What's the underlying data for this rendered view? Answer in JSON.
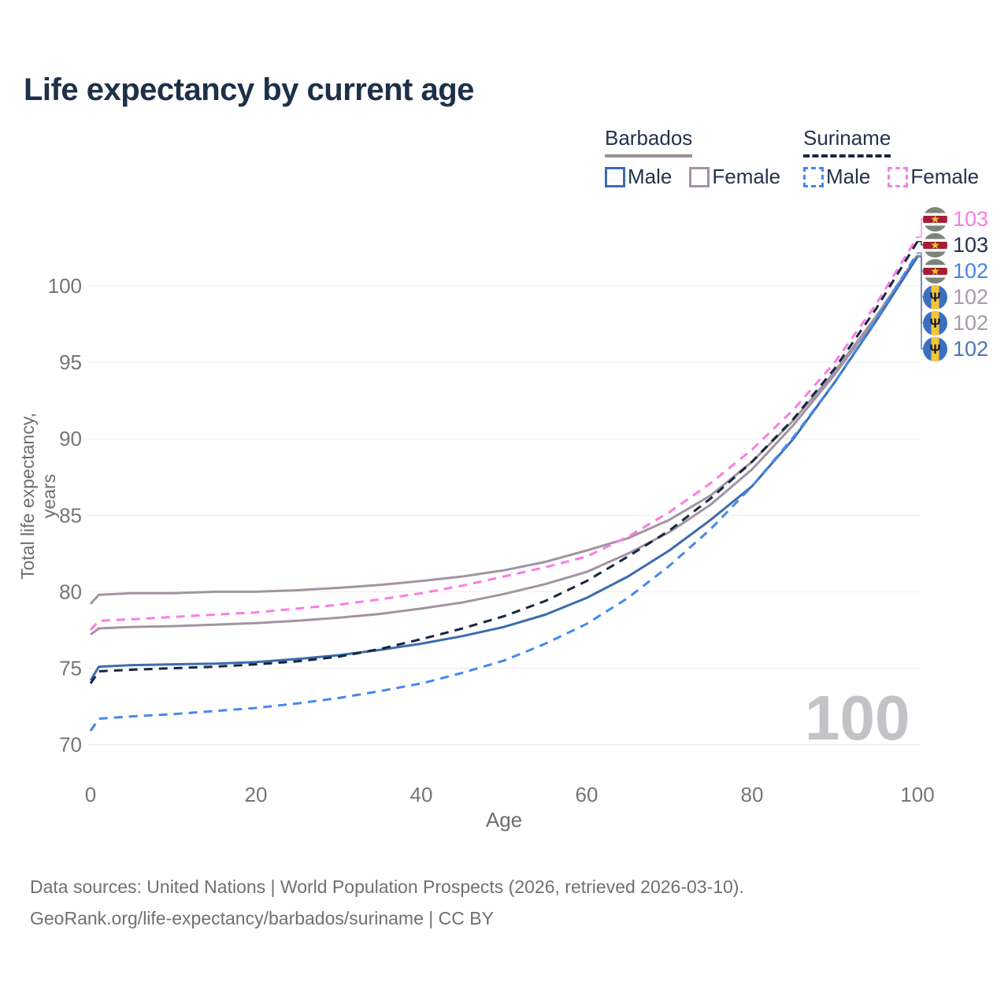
{
  "title": "Life expectancy by current age",
  "legend": {
    "barbados": {
      "label": "Barbados",
      "line_style": "solid",
      "line_color": "#9b8f9b",
      "male_label": "Male",
      "male_color": "#3c6cae",
      "female_label": "Female",
      "female_color": "#a294a2"
    },
    "suriname": {
      "label": "Suriname",
      "line_style": "dashed",
      "line_color": "#172740",
      "male_label": "Male",
      "male_color": "#4289f0",
      "female_label": "Female",
      "female_color": "#fa7de2"
    }
  },
  "axes": {
    "y_title": "Total life expectancy, years",
    "x_title": "Age",
    "y_ticks": [
      70,
      75,
      80,
      85,
      90,
      95,
      100
    ],
    "x_ticks": [
      0,
      20,
      40,
      60,
      80,
      100
    ],
    "tick_color": "#757575",
    "grid_color": "#ececec"
  },
  "watermark": "100",
  "footer": {
    "line1": "Data sources: United Nations | World Population Prospects (2026, retrieved 2026-03-10).",
    "line2": "GeoRank.org/life-expectancy/barbados/suriname | CC BY"
  },
  "end_labels": [
    {
      "flag": "suriname",
      "value": "103",
      "color": "#fa7de2",
      "series_index": 3
    },
    {
      "flag": "suriname",
      "value": "103",
      "color": "#22334d",
      "series_index": 4
    },
    {
      "flag": "suriname",
      "value": "102",
      "color": "#4285e8",
      "series_index": 5
    },
    {
      "flag": "barbados",
      "value": "102",
      "color": "#a89aa8",
      "series_index": 0
    },
    {
      "flag": "barbados",
      "value": "102",
      "color": "#a89aa8",
      "series_index": 1
    },
    {
      "flag": "barbados",
      "value": "102",
      "color": "#4a77b0",
      "series_index": 2
    }
  ],
  "chart_data": {
    "type": "line",
    "title": "Life expectancy by current age",
    "xlabel": "Age",
    "ylabel": "Total life expectancy, years",
    "xlim": [
      0,
      100
    ],
    "ylim": [
      70,
      103.5
    ],
    "grid": "horizontal",
    "legend_position": "top-right",
    "x": [
      0,
      1,
      5,
      10,
      15,
      20,
      25,
      30,
      35,
      40,
      45,
      50,
      55,
      60,
      65,
      70,
      75,
      80,
      85,
      90,
      95,
      100
    ],
    "series": [
      {
        "name": "Barbados Female",
        "country": "Barbados",
        "sex": "female",
        "style": "solid",
        "color": "#a294a2",
        "values": [
          79.2,
          79.8,
          79.9,
          79.9,
          80.0,
          80.0,
          80.1,
          80.25,
          80.45,
          80.7,
          81.0,
          81.4,
          81.95,
          82.7,
          83.5,
          84.7,
          86.3,
          88.5,
          91.2,
          94.4,
          98.0,
          102.0
        ]
      },
      {
        "name": "Barbados Both sexes",
        "country": "Barbados",
        "sex": "both",
        "style": "solid",
        "color": "#a294a2",
        "values": [
          77.2,
          77.6,
          77.7,
          77.75,
          77.85,
          77.95,
          78.1,
          78.3,
          78.55,
          78.9,
          79.3,
          79.85,
          80.5,
          81.3,
          82.5,
          83.9,
          85.7,
          88.0,
          90.9,
          94.2,
          97.9,
          101.95
        ]
      },
      {
        "name": "Barbados Male",
        "country": "Barbados",
        "sex": "male",
        "style": "solid",
        "color": "#3c6cae",
        "values": [
          74.2,
          75.1,
          75.2,
          75.25,
          75.3,
          75.4,
          75.6,
          75.85,
          76.2,
          76.6,
          77.1,
          77.7,
          78.5,
          79.6,
          81.0,
          82.7,
          84.7,
          86.9,
          90.0,
          93.7,
          97.7,
          101.9
        ]
      },
      {
        "name": "Suriname Female",
        "country": "Suriname",
        "sex": "female",
        "style": "dashed",
        "color": "#fa7de2",
        "values": [
          77.5,
          78.1,
          78.2,
          78.35,
          78.5,
          78.65,
          78.9,
          79.15,
          79.5,
          79.9,
          80.4,
          81.0,
          81.6,
          82.3,
          83.6,
          85.2,
          87.1,
          89.3,
          91.9,
          95.0,
          98.8,
          103.2
        ]
      },
      {
        "name": "Suriname Both sexes",
        "country": "Suriname",
        "sex": "both",
        "style": "dashed",
        "color": "#172740",
        "values": [
          74.0,
          74.8,
          74.9,
          75.0,
          75.1,
          75.25,
          75.45,
          75.75,
          76.25,
          76.9,
          77.6,
          78.4,
          79.4,
          80.7,
          82.3,
          84.0,
          86.1,
          88.5,
          91.3,
          94.6,
          98.5,
          102.9
        ]
      },
      {
        "name": "Suriname Male",
        "country": "Suriname",
        "sex": "male",
        "style": "dashed",
        "color": "#4289f0",
        "values": [
          70.9,
          71.7,
          71.85,
          72.0,
          72.2,
          72.4,
          72.7,
          73.05,
          73.5,
          74.0,
          74.7,
          75.5,
          76.6,
          77.9,
          79.6,
          81.7,
          84.1,
          86.9,
          90.1,
          93.7,
          97.8,
          102.15
        ]
      }
    ]
  }
}
